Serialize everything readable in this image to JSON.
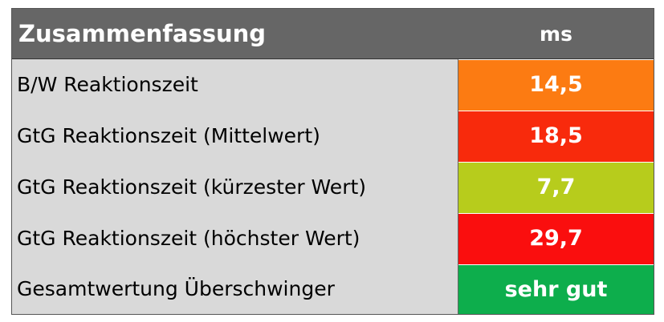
{
  "table": {
    "title": "Zusammenfassung",
    "unit_header": "ms",
    "rows": [
      {
        "label": "B/W Reaktionszeit",
        "value": "14,5",
        "color": "#fc7b12"
      },
      {
        "label": "GtG Reaktionszeit (Mittelwert)",
        "value": "18,5",
        "color": "#f82a0c"
      },
      {
        "label": "GtG Reaktionszeit (kürzester Wert)",
        "value": "7,7",
        "color": "#b7cc1c"
      },
      {
        "label": "GtG Reaktionszeit (höchster Wert)",
        "value": "29,7",
        "color": "#fa0e0e"
      },
      {
        "label": "Gesamtwertung Überschwinger",
        "value": "sehr gut",
        "color": "#0dae4c"
      }
    ]
  }
}
